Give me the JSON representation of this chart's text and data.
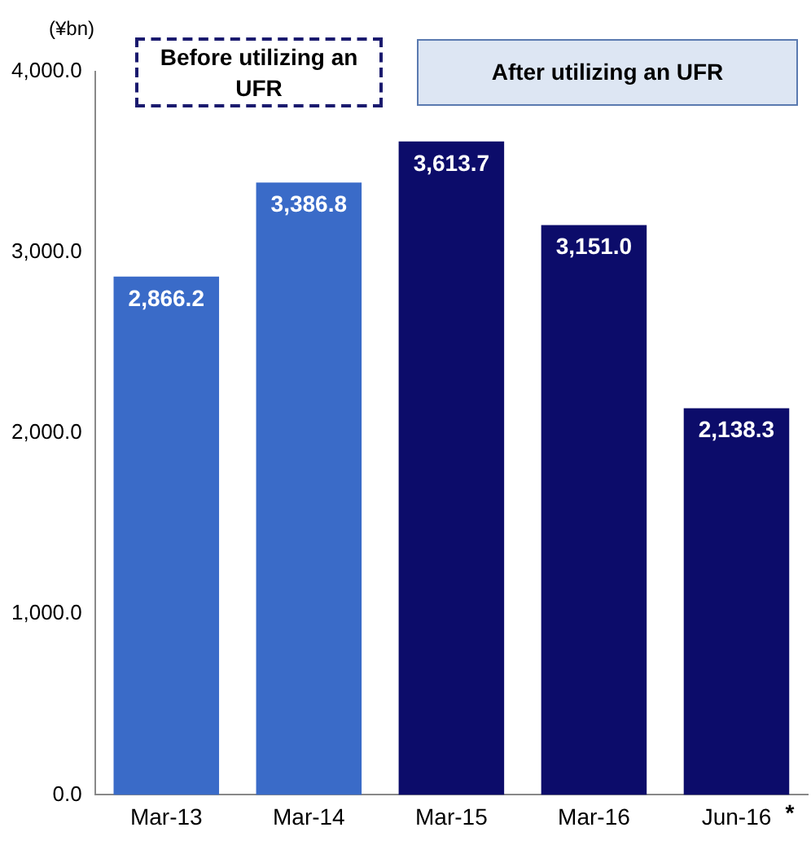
{
  "chart_data": {
    "type": "bar",
    "ylabel": "(¥bn)",
    "categories": [
      "Mar-13",
      "Mar-14",
      "Mar-15",
      "Mar-16",
      "Jun-16"
    ],
    "values": [
      2866.2,
      3386.8,
      3613.7,
      3151.0,
      2138.3
    ],
    "colors": [
      "#3a6bc8",
      "#3a6bc8",
      "#0c0c6a",
      "#0c0c6a",
      "#0c0c6a"
    ],
    "value_labels": [
      "2,866.2",
      "3,386.8",
      "3,613.7",
      "3,151.0",
      "2,138.3"
    ],
    "ylim": [
      0,
      4000
    ],
    "yticks": [
      {
        "value": 0,
        "label": "0.0"
      },
      {
        "value": 1000,
        "label": "1,000.0"
      },
      {
        "value": 2000,
        "label": "2,000.0"
      },
      {
        "value": 3000,
        "label": "3,000.0"
      },
      {
        "value": 4000,
        "label": "4,000.0"
      }
    ],
    "grid": false,
    "annotations": [
      "Before utilizing an UFR",
      "After utilizing an UFR",
      "*"
    ]
  }
}
